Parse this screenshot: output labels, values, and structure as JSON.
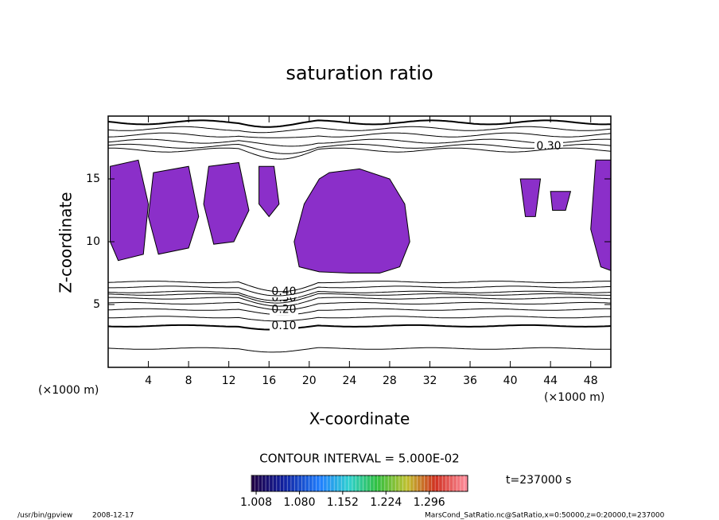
{
  "chart_data": {
    "type": "contour",
    "title": "saturation ratio",
    "xlabel": "X-coordinate",
    "ylabel": "Z-coordinate",
    "axis_unit": "(×1000 m)",
    "xlim": [
      0,
      50
    ],
    "xticks": [
      4,
      8,
      12,
      16,
      20,
      24,
      28,
      32,
      36,
      40,
      44,
      48
    ],
    "ylim": [
      0,
      20
    ],
    "yticks": [
      5,
      10,
      15
    ],
    "fill_color": "#8b2fc9",
    "regions": [
      {
        "x": [
          22,
          25,
          28,
          29.5,
          30,
          29,
          27,
          24,
          21,
          19,
          18.5,
          19.5,
          21
        ],
        "z": [
          15.5,
          15.8,
          15,
          13,
          10,
          8,
          7.5,
          7.5,
          7.6,
          8,
          10,
          13,
          15
        ]
      },
      {
        "x": [
          0.2,
          3,
          4,
          3.5,
          1,
          0.2
        ],
        "z": [
          16,
          16.5,
          13,
          9,
          8.5,
          10
        ]
      },
      {
        "x": [
          4.5,
          8,
          9,
          8,
          5,
          4
        ],
        "z": [
          15.5,
          16,
          12,
          9.5,
          9,
          12
        ]
      },
      {
        "x": [
          10,
          13,
          14,
          12.5,
          10.5,
          9.5
        ],
        "z": [
          16,
          16.3,
          12.5,
          10,
          9.8,
          13
        ]
      },
      {
        "x": [
          15,
          16.5,
          17,
          16,
          15
        ],
        "z": [
          16,
          16,
          13,
          12,
          13
        ]
      },
      {
        "x": [
          48.5,
          50,
          50,
          49,
          48
        ],
        "z": [
          16.5,
          16.5,
          7.7,
          8,
          11
        ]
      },
      {
        "x": [
          41,
          43,
          42.5,
          41.5
        ],
        "z": [
          15,
          15,
          12,
          12
        ]
      },
      {
        "x": [
          44,
          46,
          45.5,
          44.2
        ],
        "z": [
          14,
          14,
          12.5,
          12.5
        ]
      }
    ],
    "contours": [
      {
        "level": 0.05,
        "z": 1.5
      },
      {
        "level": {
          "value": 0.1,
          "label": "0.10"
        },
        "z": 3.3
      },
      {
        "level": 0.15,
        "z": 4.0
      },
      {
        "level": {
          "value": 0.2,
          "label": "0.20"
        },
        "z": 4.6
      },
      {
        "level": 0.25,
        "z": 5.1
      },
      {
        "level": {
          "value": 0.3,
          "label": "0.30"
        },
        "z": 5.5
      },
      {
        "level": 0.35,
        "z": 5.8
      },
      {
        "level": {
          "value": 0.4,
          "label": "0.40"
        },
        "z": 6.0
      },
      {
        "level": 0.45,
        "z": 6.4
      },
      {
        "level": 0.5,
        "z": 6.8
      }
    ],
    "upper_contours": [
      {
        "level": 0.1,
        "z": 19.5
      },
      {
        "level": 0.15,
        "z": 19.0
      },
      {
        "level": 0.2,
        "z": 18.5
      },
      {
        "level": 0.25,
        "z": 18.0
      },
      {
        "level": {
          "value": 0.3,
          "label": "0.30"
        },
        "z": 17.6
      },
      {
        "level": 0.35,
        "z": 17.3
      }
    ],
    "contour_interval": "CONTOUR INTERVAL = 5.000E-02",
    "colorbar": {
      "lim": [
        1.0,
        1.36
      ],
      "ticks": [
        1.008,
        {
          "value": 1.08,
          "label": "1.080"
        },
        1.152,
        1.224,
        1.296
      ]
    },
    "time_label": "t=237000 s",
    "footer_left": "/usr/bin/gpview",
    "footer_date": "2008-12-17",
    "footer_right": "MarsCond_SatRatio.nc@SatRatio,x=0:50000,z=0:20000,t=237000"
  }
}
